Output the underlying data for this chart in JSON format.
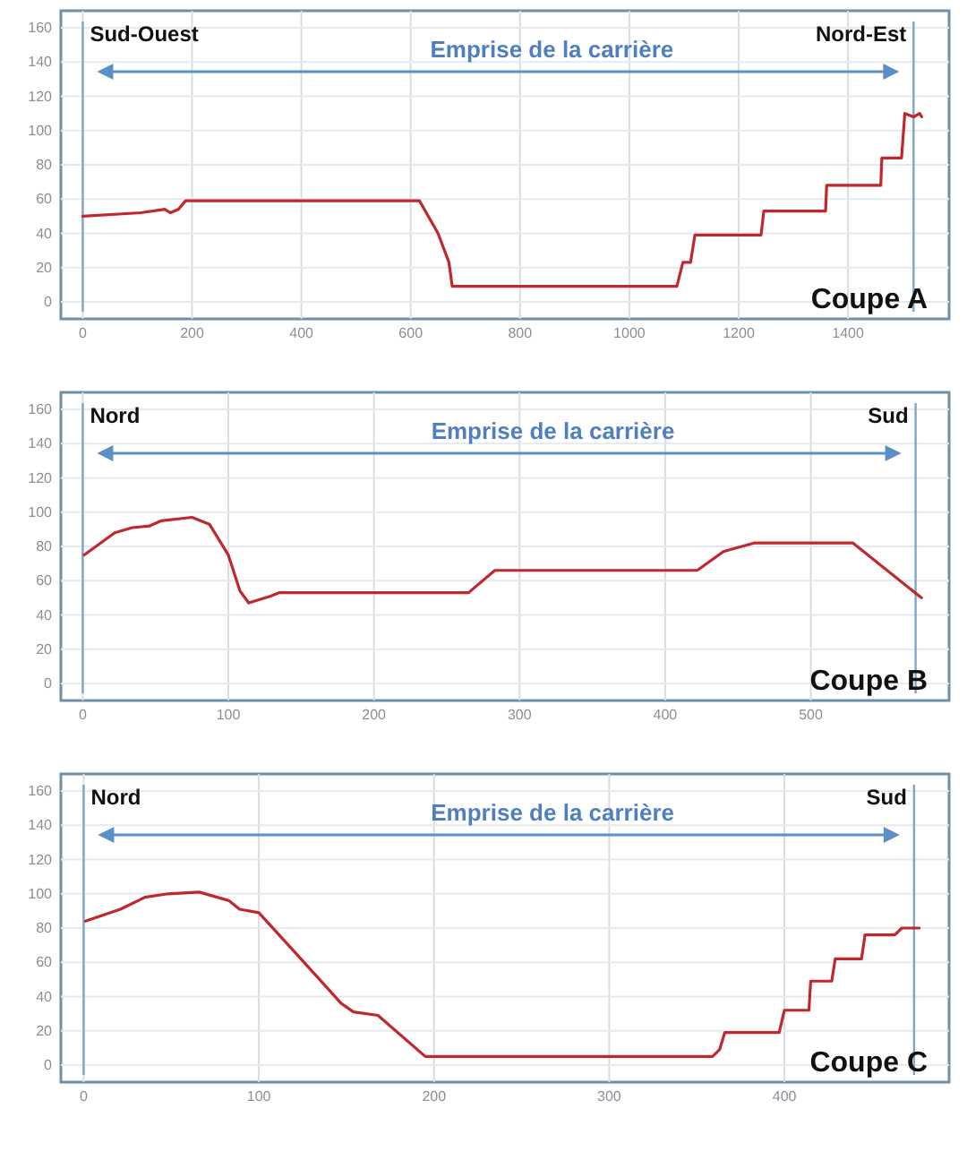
{
  "chart_data": [
    {
      "type": "line",
      "title": "Coupe A",
      "annotations": [
        "Emprise de la carrière"
      ],
      "xlim": [
        -40,
        1585
      ],
      "xticks": [
        0,
        200,
        400,
        600,
        800,
        1000,
        1200,
        1400
      ],
      "ylim": [
        -10,
        170
      ],
      "yticks": [
        0,
        20,
        40,
        60,
        80,
        100,
        120,
        140,
        160
      ],
      "grid": true,
      "series": [
        {
          "color": "#c0282d",
          "x": [
            0,
            106,
            150,
            160,
            175,
            188,
            616,
            650,
            670,
            676,
            1087,
            1098,
            1112,
            1120,
            1241,
            1246,
            1359,
            1361,
            1460,
            1462,
            1498,
            1504,
            1520,
            1531,
            1535
          ],
          "values": [
            50,
            52,
            54,
            52,
            54,
            59,
            59,
            40,
            23,
            9,
            9,
            23,
            23,
            39,
            39,
            53,
            53,
            68,
            68,
            84,
            84,
            110,
            108,
            110,
            108
          ]
        }
      ],
      "ref_lines": [
        {
          "axis": "x",
          "value": 0,
          "label": "Sud-Ouest",
          "color": "#7ea6c8"
        },
        {
          "axis": "x",
          "value": 1520,
          "label": "Nord-Est",
          "color": "#7ea6c8"
        }
      ]
    },
    {
      "type": "line",
      "title": "Coupe B",
      "annotations": [
        "Emprise de la carrière"
      ],
      "xlim": [
        -15,
        595
      ],
      "xticks": [
        0,
        100,
        200,
        300,
        400,
        500
      ],
      "ylim": [
        -10,
        170
      ],
      "yticks": [
        0,
        20,
        40,
        60,
        80,
        100,
        120,
        140,
        160
      ],
      "grid": true,
      "series": [
        {
          "color": "#c0282d",
          "x": [
            1,
            22,
            34,
            46,
            54,
            75,
            87,
            100,
            108,
            114,
            129,
            135,
            265,
            283,
            422,
            440,
            448,
            461,
            529,
            576
          ],
          "values": [
            75,
            88,
            91,
            92,
            95,
            97,
            93,
            75,
            54,
            47,
            51,
            53,
            53,
            66,
            66,
            77,
            79,
            82,
            82,
            50
          ]
        }
      ],
      "ref_lines": [
        {
          "axis": "x",
          "value": 0,
          "label": "Nord",
          "color": "#7ea6c8"
        },
        {
          "axis": "x",
          "value": 572,
          "label": "Sud",
          "color": "#7ea6c8"
        }
      ]
    },
    {
      "type": "line",
      "title": "Coupe C",
      "annotations": [
        "Emprise de la carrière"
      ],
      "xlim": [
        -13,
        494
      ],
      "xticks": [
        0,
        100,
        200,
        300,
        400
      ],
      "ylim": [
        -10,
        170
      ],
      "yticks": [
        0,
        20,
        40,
        60,
        80,
        100,
        120,
        140,
        160
      ],
      "grid": true,
      "series": [
        {
          "color": "#c0282d",
          "x": [
            1,
            21,
            35,
            48,
            66,
            83,
            89,
            100,
            124,
            147,
            154,
            168,
            195,
            359,
            363,
            366,
            397,
            400,
            414,
            415,
            427,
            429,
            444,
            446,
            463,
            467,
            477
          ],
          "values": [
            84,
            91,
            98,
            100,
            101,
            96,
            91,
            89,
            62,
            36,
            31,
            29,
            5,
            5,
            9,
            19,
            19,
            32,
            32,
            49,
            49,
            62,
            62,
            76,
            76,
            80,
            80
          ]
        }
      ],
      "ref_lines": [
        {
          "axis": "x",
          "value": 0,
          "label": "Nord",
          "color": "#7ea6c8"
        },
        {
          "axis": "x",
          "value": 474,
          "label": "Sud",
          "color": "#7ea6c8"
        }
      ]
    }
  ]
}
